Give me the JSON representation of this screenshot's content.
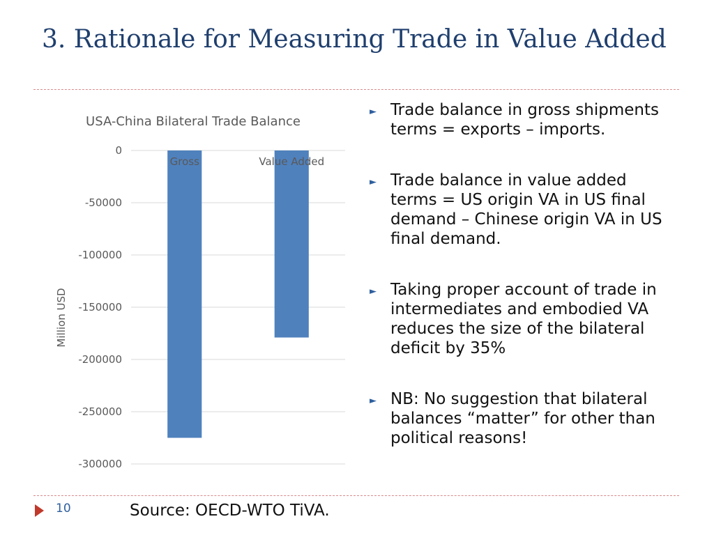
{
  "title": "3. Rationale for Measuring Trade in Value Added",
  "bullets": [
    "Trade balance in gross shipments terms = exports – imports.",
    "Trade balance in value added terms = US origin VA in US final demand – Chinese origin VA in US final demand.",
    "Taking proper account of trade in intermediates and embodied VA reduces the size of the bilateral deficit by 35%",
    "NB: No suggestion that bilateral balances “matter” for other than political reasons!"
  ],
  "footer": {
    "page_number": "10",
    "source": "Source: OECD-WTO TiVA."
  },
  "colors": {
    "title": "#1f3f6e",
    "bar": "#4f81bd",
    "rule": "#d98a8a",
    "marker": "#2e5f9e",
    "arrow": "#c0392b"
  },
  "chart_data": {
    "type": "bar",
    "title": "USA-China Bilateral Trade Balance",
    "xlabel": "",
    "ylabel": "Million USD",
    "categories": [
      "Gross",
      "Value Added"
    ],
    "values": [
      -275000,
      -179000
    ],
    "ylim": [
      -300000,
      0
    ],
    "yticks": [
      0,
      -50000,
      -100000,
      -150000,
      -200000,
      -250000,
      -300000
    ],
    "ytick_labels": [
      "0",
      "-50000",
      "-100000",
      "-150000",
      "-200000",
      "-250000",
      "-300000"
    ],
    "grid": true,
    "legend": "none"
  }
}
